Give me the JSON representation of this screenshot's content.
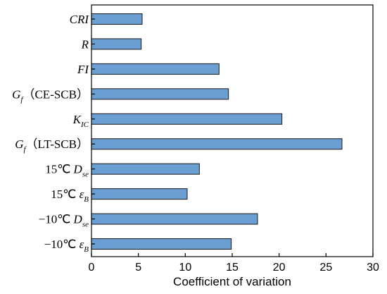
{
  "chart_data": {
    "type": "bar",
    "orientation": "horizontal",
    "categories": [
      {
        "parts": [
          {
            "t": "CRI",
            "i": true
          }
        ]
      },
      {
        "parts": [
          {
            "t": "R",
            "i": true
          }
        ]
      },
      {
        "parts": [
          {
            "t": "FI",
            "i": true
          }
        ]
      },
      {
        "parts": [
          {
            "t": "G",
            "i": true
          },
          {
            "t": "f",
            "i": true,
            "sub": true
          },
          {
            "t": "（CE-SCB）"
          }
        ]
      },
      {
        "parts": [
          {
            "t": "K",
            "i": true
          },
          {
            "t": "IC",
            "i": true,
            "sub": true
          }
        ]
      },
      {
        "parts": [
          {
            "t": "G",
            "i": true
          },
          {
            "t": "f",
            "i": true,
            "sub": true
          },
          {
            "t": "（LT-SCB）"
          }
        ]
      },
      {
        "parts": [
          {
            "t": "15℃ "
          },
          {
            "t": "D",
            "i": true
          },
          {
            "t": "se",
            "i": true,
            "sub": true
          }
        ]
      },
      {
        "parts": [
          {
            "t": "15℃ "
          },
          {
            "t": "ε",
            "i": true
          },
          {
            "t": "B",
            "i": true,
            "sub": true
          }
        ]
      },
      {
        "parts": [
          {
            "t": "−10℃ "
          },
          {
            "t": "D",
            "i": true
          },
          {
            "t": "se",
            "i": true,
            "sub": true
          }
        ]
      },
      {
        "parts": [
          {
            "t": "−10℃ "
          },
          {
            "t": "ε",
            "i": true
          },
          {
            "t": "B",
            "i": true,
            "sub": true
          }
        ]
      }
    ],
    "values": [
      5.4,
      5.3,
      13.6,
      14.6,
      20.3,
      26.7,
      11.5,
      10.2,
      17.7,
      14.9
    ],
    "xlabel": "Coefficient of variation",
    "xlim": [
      0,
      30
    ],
    "xticks": [
      0,
      5,
      10,
      15,
      20,
      25,
      30
    ],
    "grid": false,
    "bar_color": "#6b9fd4",
    "edge_color": "#1a1a1a"
  }
}
